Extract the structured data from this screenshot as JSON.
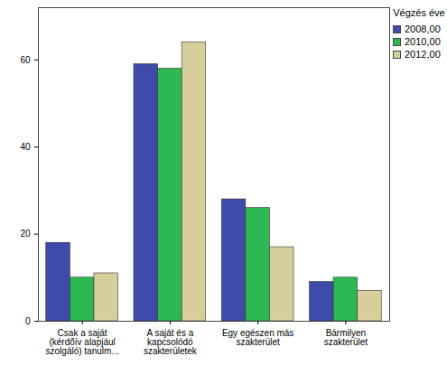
{
  "chart_data": {
    "type": "bar",
    "categories": [
      "Csak a saját (kérdőív alapjául szolgáló) tanulm...",
      "A saját és a kapcsolódó szakterületek",
      "Egy egészen más szakterület",
      "Bármilyen szakterület"
    ],
    "series": [
      {
        "name": "2008,00",
        "color": "#3e4ba8",
        "values": [
          18,
          59,
          28,
          9
        ]
      },
      {
        "name": "2010,00",
        "color": "#2eb851",
        "values": [
          10,
          58,
          26,
          10
        ]
      },
      {
        "name": "2012,00",
        "color": "#d4cf9b",
        "values": [
          11,
          64,
          17,
          7
        ]
      }
    ],
    "legend_title": "Végzés éve",
    "legend": "right",
    "ylim": [
      0,
      72
    ],
    "yticks": [
      0,
      20,
      40,
      60
    ],
    "grid": false
  }
}
